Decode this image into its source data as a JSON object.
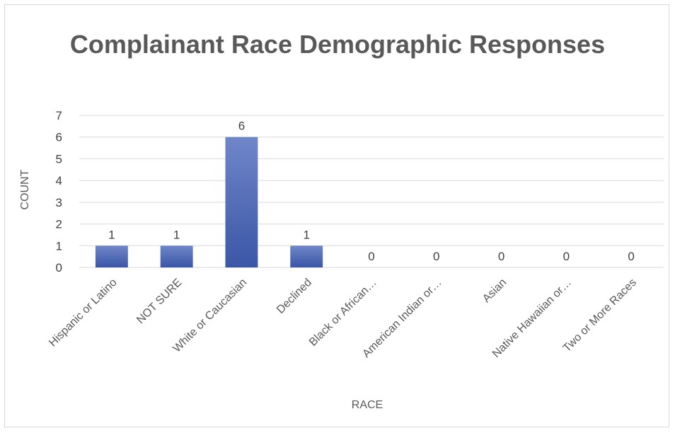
{
  "chart_data": {
    "type": "bar",
    "title": "Complainant Race Demographic Responses",
    "xlabel": "RACE",
    "ylabel": "COUNT",
    "categories": [
      "Hispanic or Latino",
      "NOT SURE",
      "White or Caucasian",
      "Declined",
      "Black or African…",
      "American Indian or…",
      "Asian",
      "Native Hawaiian or…",
      "Two or More Races"
    ],
    "values": [
      1,
      1,
      6,
      1,
      0,
      0,
      0,
      0,
      0
    ],
    "ylim": [
      0,
      7
    ],
    "yticks": [
      0,
      1,
      2,
      3,
      4,
      5,
      6,
      7
    ],
    "grid": true,
    "legend": "none",
    "data_labels": true,
    "colors": {
      "bar_top": "#6f86c8",
      "bar_bottom": "#3a56a6",
      "grid": "#d9d9d9",
      "title": "#595959",
      "text": "#404040"
    }
  }
}
